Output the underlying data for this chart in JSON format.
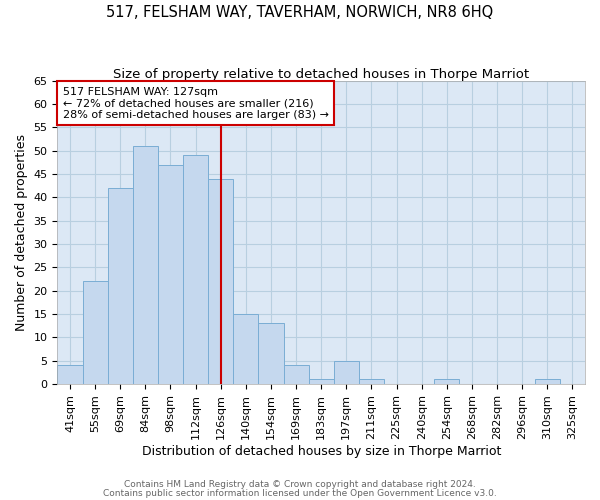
{
  "title": "517, FELSHAM WAY, TAVERHAM, NORWICH, NR8 6HQ",
  "subtitle": "Size of property relative to detached houses in Thorpe Marriot",
  "xlabel": "Distribution of detached houses by size in Thorpe Marriot",
  "ylabel": "Number of detached properties",
  "footnote1": "Contains HM Land Registry data © Crown copyright and database right 2024.",
  "footnote2": "Contains public sector information licensed under the Open Government Licence v3.0.",
  "bar_labels": [
    "41sqm",
    "55sqm",
    "69sqm",
    "84sqm",
    "98sqm",
    "112sqm",
    "126sqm",
    "140sqm",
    "154sqm",
    "169sqm",
    "183sqm",
    "197sqm",
    "211sqm",
    "225sqm",
    "240sqm",
    "254sqm",
    "268sqm",
    "282sqm",
    "296sqm",
    "310sqm",
    "325sqm"
  ],
  "bar_values": [
    4,
    22,
    42,
    51,
    47,
    49,
    44,
    15,
    13,
    4,
    1,
    5,
    1,
    0,
    0,
    1,
    0,
    0,
    0,
    1,
    0
  ],
  "bar_color": "#c5d8ee",
  "bar_edge_color": "#7aadd4",
  "vline_x": 6,
  "vline_color": "#cc0000",
  "annotation_text": "517 FELSHAM WAY: 127sqm\n← 72% of detached houses are smaller (216)\n28% of semi-detached houses are larger (83) →",
  "annotation_box_color": "#ffffff",
  "annotation_box_edge": "#cc0000",
  "ylim": [
    0,
    65
  ],
  "yticks": [
    0,
    5,
    10,
    15,
    20,
    25,
    30,
    35,
    40,
    45,
    50,
    55,
    60,
    65
  ],
  "background_color": "#ffffff",
  "plot_bg_color": "#dce8f5",
  "grid_color": "#b8cfe0",
  "title_fontsize": 10.5,
  "subtitle_fontsize": 9.5,
  "xlabel_fontsize": 9,
  "ylabel_fontsize": 9,
  "tick_fontsize": 8,
  "annotation_fontsize": 8,
  "footnote_fontsize": 6.5,
  "footnote_color": "#666666"
}
